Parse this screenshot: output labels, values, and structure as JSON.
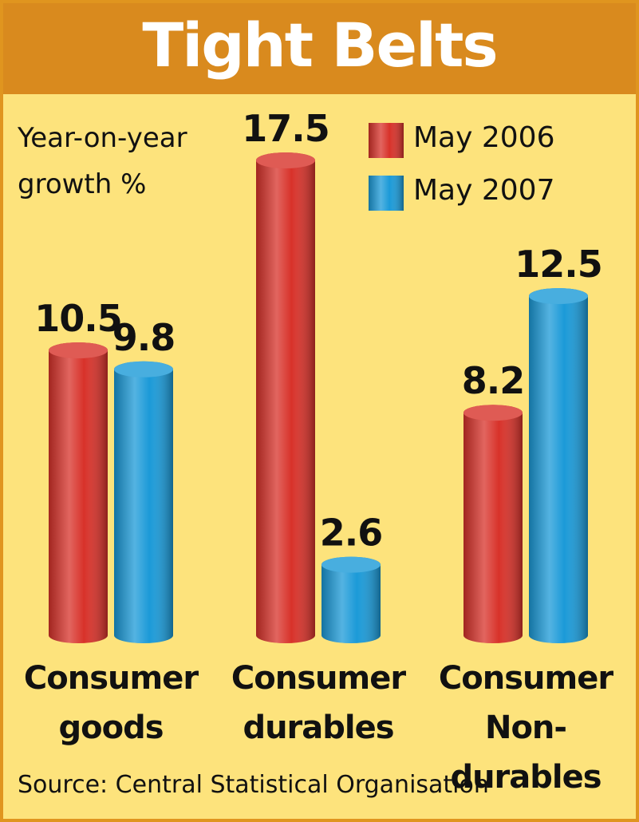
{
  "chart_data": {
    "type": "bar",
    "title": "Tight Belts",
    "subtitle": "Year-on-year growth %",
    "categories": [
      "Consumer goods",
      "Consumer durables",
      "Consumer Non-durables"
    ],
    "series": [
      {
        "name": "May 2006",
        "color": "#d8322a",
        "values": [
          10.5,
          17.5,
          8.2
        ]
      },
      {
        "name": "May 2007",
        "color": "#1b9ad8",
        "values": [
          9.8,
          2.6,
          12.5
        ]
      }
    ],
    "source": "Source: Central Statistical Organisation"
  }
}
